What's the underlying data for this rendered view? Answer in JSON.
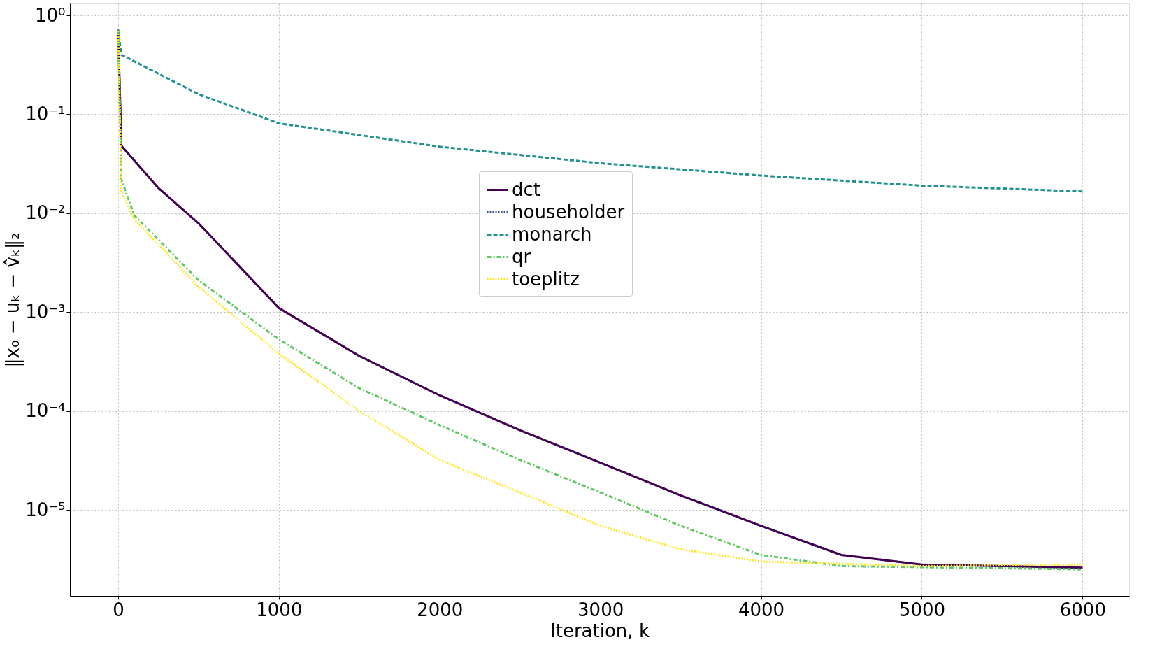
{
  "chart_data": {
    "type": "line",
    "xlabel": "Iteration, k",
    "ylabel": "‖x₀ − uₖ − v̂ₖ‖₂",
    "log": "y",
    "grid": true,
    "legend": "center",
    "xlim": [
      -300,
      6290
    ],
    "xticks": [
      0,
      1000,
      2000,
      3000,
      4000,
      5000,
      6000
    ],
    "ylim": [
      1.35e-06,
      1.32
    ],
    "yticks": [
      {
        "value": 1,
        "label": "10⁰"
      },
      {
        "value": 0.1,
        "label": "10⁻¹"
      },
      {
        "value": 0.01,
        "label": "10⁻²"
      },
      {
        "value": 0.001,
        "label": "10⁻³"
      },
      {
        "value": 0.0001,
        "label": "10⁻⁴"
      },
      {
        "value": 1e-05,
        "label": "10⁻⁵"
      }
    ],
    "series": [
      {
        "name": "dct",
        "color": "#440154",
        "line_style": "solid",
        "x": [
          0,
          20,
          250,
          500,
          1000,
          1500,
          2000,
          2500,
          3000,
          3500,
          4000,
          4500,
          5000,
          6000
        ],
        "values": [
          0.7,
          0.048,
          0.018,
          0.0079,
          0.0011,
          0.00036,
          0.000144,
          6.4e-05,
          3e-05,
          1.4e-05,
          6.9e-06,
          3.5e-06,
          2.8e-06,
          2.6e-06
        ]
      },
      {
        "name": "householder",
        "color": "#3b528b",
        "line_style": "dotted",
        "x": [
          0,
          20,
          250,
          500,
          1000,
          1500,
          2000,
          2500,
          3000,
          3500,
          4000,
          4500,
          5000,
          6000
        ],
        "values": [
          0.7,
          0.048,
          0.018,
          0.0079,
          0.0011,
          0.00036,
          0.000144,
          6.4e-05,
          3e-05,
          1.4e-05,
          6.9e-06,
          3.5e-06,
          2.8e-06,
          2.6e-06
        ]
      },
      {
        "name": "monarch",
        "color": "#21918c",
        "line_style": "dashed",
        "x": [
          0,
          20,
          500,
          1000,
          2000,
          3000,
          4000,
          5000,
          6000
        ],
        "values": [
          0.72,
          0.4,
          0.16,
          0.081,
          0.047,
          0.032,
          0.024,
          0.019,
          0.0166
        ]
      },
      {
        "name": "qr",
        "color": "#5ec962",
        "line_style": "dashdot",
        "x": [
          0,
          20,
          100,
          500,
          1000,
          1500,
          2000,
          2500,
          3000,
          3500,
          4000,
          4500,
          6000
        ],
        "values": [
          0.7,
          0.022,
          0.0095,
          0.0021,
          0.00053,
          0.00017,
          7.2e-05,
          3.2e-05,
          1.5e-05,
          6.9e-06,
          3.5e-06,
          2.7e-06,
          2.5e-06
        ]
      },
      {
        "name": "toeplitz",
        "color": "#fde725",
        "line_style": "dotted",
        "x": [
          0,
          20,
          100,
          500,
          1000,
          1500,
          2000,
          2500,
          3000,
          3500,
          4000,
          5000,
          6000
        ],
        "values": [
          0.7,
          0.0166,
          0.0087,
          0.0018,
          0.00038,
          0.0001,
          3.2e-05,
          1.5e-05,
          6.9e-06,
          4e-06,
          3e-06,
          2.7e-06,
          2.8e-06
        ]
      }
    ]
  }
}
